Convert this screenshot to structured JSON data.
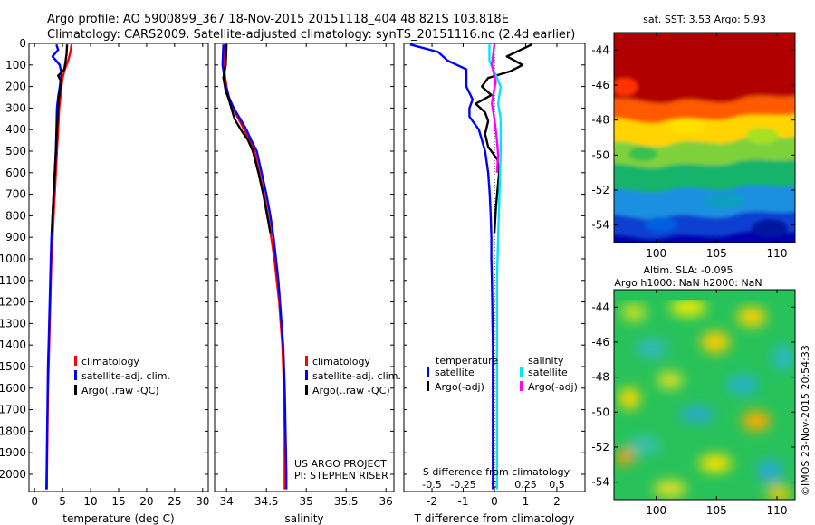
{
  "header": {
    "line1": "Argo profile: AO 5900899_367 18-Nov-2015 20151118_404 48.821S 103.818E",
    "line2": "Climatology: CARS2009. Satellite-adjusted climatology: synTS_20151116.nc (2.4d earlier)"
  },
  "footer_stamp": "©IMOS 23-Nov-2015 20:54:33",
  "colors": {
    "climatology": "#ff0000",
    "satellite": "#0000ff",
    "argo": "#000000",
    "sal_satellite": "#00e5ff",
    "sal_argo": "#ff00ff"
  },
  "chart_data": [
    {
      "id": "temperature",
      "type": "line",
      "xlabel": "temperature (deg C)",
      "ylabel": "",
      "xlim": [
        -1,
        31
      ],
      "ylim": [
        2080,
        0
      ],
      "xticks": [
        "0",
        "5",
        "10",
        "15",
        "20",
        "25",
        "30"
      ],
      "yticks": [
        "0",
        "100",
        "200",
        "300",
        "400",
        "500",
        "600",
        "700",
        "800",
        "900",
        "1000",
        "1100",
        "1200",
        "1300",
        "1400",
        "1500",
        "1600",
        "1700",
        "1800",
        "1900",
        "2000"
      ],
      "legend": [
        "climatology",
        "satellite-adj. clim.",
        "Argo(..raw -QC)"
      ],
      "series": [
        {
          "name": "climatology",
          "points": [
            [
              6.6,
              5
            ],
            [
              6.4,
              40
            ],
            [
              6.0,
              80
            ],
            [
              5.4,
              120
            ],
            [
              5.0,
              160
            ],
            [
              4.8,
              200
            ],
            [
              4.6,
              250
            ],
            [
              4.4,
              300
            ],
            [
              4.2,
              400
            ],
            [
              4.0,
              500
            ],
            [
              3.8,
              600
            ],
            [
              3.6,
              700
            ],
            [
              3.4,
              800
            ],
            [
              3.2,
              900
            ],
            [
              3.0,
              1000
            ],
            [
              2.9,
              1100
            ],
            [
              2.8,
              1200
            ],
            [
              2.7,
              1300
            ],
            [
              2.6,
              1400
            ],
            [
              2.5,
              1500
            ],
            [
              2.4,
              1600
            ],
            [
              2.35,
              1700
            ],
            [
              2.3,
              1800
            ],
            [
              2.25,
              1900
            ],
            [
              2.2,
              2000
            ],
            [
              2.2,
              2070
            ]
          ]
        },
        {
          "name": "satellite-adj. clim.",
          "points": [
            [
              3.9,
              5
            ],
            [
              4.2,
              30
            ],
            [
              3.2,
              60
            ],
            [
              4.5,
              100
            ],
            [
              4.8,
              140
            ],
            [
              4.5,
              200
            ],
            [
              4.2,
              250
            ],
            [
              4.0,
              300
            ],
            [
              3.9,
              400
            ],
            [
              3.8,
              500
            ],
            [
              3.6,
              600
            ],
            [
              3.4,
              700
            ],
            [
              3.2,
              800
            ],
            [
              3.0,
              900
            ],
            [
              2.9,
              1000
            ],
            [
              2.8,
              1100
            ],
            [
              2.7,
              1200
            ],
            [
              2.6,
              1300
            ],
            [
              2.5,
              1400
            ],
            [
              2.4,
              1500
            ],
            [
              2.35,
              1600
            ],
            [
              2.3,
              1700
            ],
            [
              2.25,
              1800
            ],
            [
              2.2,
              1900
            ],
            [
              2.15,
              2000
            ],
            [
              2.1,
              2070
            ]
          ]
        },
        {
          "name": "Argo(..raw -QC)",
          "points": [
            [
              5.8,
              5
            ],
            [
              5.7,
              50
            ],
            [
              5.5,
              90
            ],
            [
              5.3,
              120
            ],
            [
              4.2,
              150
            ],
            [
              4.8,
              180
            ],
            [
              4.5,
              220
            ],
            [
              4.3,
              260
            ],
            [
              4.2,
              300
            ],
            [
              4.0,
              400
            ],
            [
              3.8,
              500
            ],
            [
              3.6,
              600
            ],
            [
              3.4,
              700
            ],
            [
              3.2,
              800
            ],
            [
              3.1,
              880
            ]
          ]
        }
      ]
    },
    {
      "id": "salinity",
      "type": "line",
      "xlabel": "salinity",
      "ylabel": "",
      "xlim": [
        33.85,
        36.1
      ],
      "ylim": [
        2080,
        0
      ],
      "xticks": [
        "34",
        "34.5",
        "35",
        "35.5",
        "36"
      ],
      "legend": [
        "climatology",
        "satellite-adj. clim.",
        "Argo(..raw -QC)"
      ],
      "annotation": [
        "US ARGO PROJECT",
        "PI: STEPHEN RISER"
      ],
      "series": [
        {
          "name": "climatology",
          "points": [
            [
              33.98,
              5
            ],
            [
              33.97,
              100
            ],
            [
              33.98,
              150
            ],
            [
              34.0,
              200
            ],
            [
              34.03,
              250
            ],
            [
              34.08,
              300
            ],
            [
              34.15,
              350
            ],
            [
              34.22,
              400
            ],
            [
              34.29,
              450
            ],
            [
              34.35,
              500
            ],
            [
              34.41,
              600
            ],
            [
              34.47,
              700
            ],
            [
              34.52,
              800
            ],
            [
              34.56,
              900
            ],
            [
              34.6,
              1000
            ],
            [
              34.63,
              1100
            ],
            [
              34.66,
              1200
            ],
            [
              34.68,
              1300
            ],
            [
              34.7,
              1400
            ],
            [
              34.71,
              1500
            ],
            [
              34.72,
              1600
            ],
            [
              34.725,
              1700
            ],
            [
              34.73,
              1800
            ],
            [
              34.73,
              1900
            ],
            [
              34.73,
              2000
            ],
            [
              34.73,
              2070
            ]
          ]
        },
        {
          "name": "satellite-adj. clim.",
          "points": [
            [
              33.96,
              5
            ],
            [
              33.95,
              100
            ],
            [
              33.97,
              150
            ],
            [
              33.99,
              200
            ],
            [
              34.03,
              250
            ],
            [
              34.09,
              300
            ],
            [
              34.17,
              350
            ],
            [
              34.25,
              400
            ],
            [
              34.31,
              450
            ],
            [
              34.38,
              500
            ],
            [
              34.44,
              600
            ],
            [
              34.5,
              700
            ],
            [
              34.55,
              800
            ],
            [
              34.59,
              900
            ],
            [
              34.62,
              1000
            ],
            [
              34.65,
              1100
            ],
            [
              34.67,
              1200
            ],
            [
              34.69,
              1300
            ],
            [
              34.71,
              1400
            ],
            [
              34.72,
              1500
            ],
            [
              34.73,
              1600
            ],
            [
              34.735,
              1700
            ],
            [
              34.74,
              1800
            ],
            [
              34.745,
              1900
            ],
            [
              34.75,
              2000
            ],
            [
              34.75,
              2070
            ]
          ]
        },
        {
          "name": "Argo(..raw -QC)",
          "points": [
            [
              34.0,
              5
            ],
            [
              33.99,
              100
            ],
            [
              33.96,
              160
            ],
            [
              33.99,
              220
            ],
            [
              34.03,
              260
            ],
            [
              34.06,
              300
            ],
            [
              34.1,
              350
            ],
            [
              34.18,
              400
            ],
            [
              34.27,
              450
            ],
            [
              34.33,
              500
            ],
            [
              34.4,
              600
            ],
            [
              34.46,
              700
            ],
            [
              34.51,
              800
            ],
            [
              34.55,
              880
            ]
          ]
        }
      ]
    },
    {
      "id": "differences",
      "type": "line",
      "xlabel": "T difference from climatology",
      "x2label": "S difference from climatology",
      "xlim": [
        -2.9,
        2.9
      ],
      "x2lim": [
        -0.725,
        0.725
      ],
      "ylim": [
        2080,
        0
      ],
      "xticks": [
        "-2",
        "-1",
        "0",
        "1",
        "2"
      ],
      "x2ticks": [
        "-0.5",
        "-0.25",
        "0",
        "0.25",
        "0.5"
      ],
      "legend_left_title": "temperature",
      "legend_right_title": "salinity",
      "legend": [
        "satellite",
        "Argo(-adj)",
        "satellite",
        "Argo(-adj)"
      ],
      "series": [
        {
          "name": "satellite",
          "quantity": "temperature",
          "points": [
            [
              -2.7,
              5
            ],
            [
              -1.8,
              40
            ],
            [
              -1.5,
              80
            ],
            [
              -0.9,
              120
            ],
            [
              -0.9,
              200
            ],
            [
              -0.7,
              260
            ],
            [
              -0.8,
              300
            ],
            [
              -0.8,
              340
            ],
            [
              -0.5,
              400
            ],
            [
              -0.3,
              500
            ],
            [
              -0.2,
              600
            ],
            [
              -0.15,
              700
            ],
            [
              -0.12,
              800
            ],
            [
              -0.1,
              900
            ],
            [
              -0.1,
              1000
            ],
            [
              -0.08,
              1100
            ],
            [
              -0.07,
              1200
            ],
            [
              -0.06,
              1300
            ],
            [
              -0.05,
              1400
            ],
            [
              -0.05,
              1500
            ],
            [
              -0.05,
              1600
            ],
            [
              -0.05,
              1700
            ],
            [
              -0.05,
              1800
            ],
            [
              -0.05,
              1900
            ],
            [
              -0.05,
              2000
            ],
            [
              -0.05,
              2070
            ]
          ]
        },
        {
          "name": "Argo(-adj)",
          "quantity": "temperature",
          "points": [
            [
              1.2,
              5
            ],
            [
              0.4,
              60
            ],
            [
              0.9,
              100
            ],
            [
              0.5,
              130
            ],
            [
              -0.2,
              160
            ],
            [
              -0.4,
              200
            ],
            [
              -0.1,
              240
            ],
            [
              -0.6,
              280
            ],
            [
              -0.3,
              320
            ],
            [
              -0.2,
              360
            ],
            [
              -0.3,
              420
            ],
            [
              -0.2,
              480
            ],
            [
              0.1,
              540
            ],
            [
              0.15,
              600
            ],
            [
              0.1,
              680
            ],
            [
              0.05,
              760
            ],
            [
              0.0,
              880
            ]
          ]
        },
        {
          "name": "satellite",
          "quantity": "salinity",
          "points": [
            [
              -0.04,
              5
            ],
            [
              -0.04,
              80
            ],
            [
              0.02,
              160
            ],
            [
              0.05,
              200
            ],
            [
              0.03,
              280
            ],
            [
              0.05,
              350
            ],
            [
              0.05,
              500
            ],
            [
              0.04,
              700
            ],
            [
              0.03,
              900
            ],
            [
              0.02,
              1100
            ],
            [
              0.02,
              1300
            ],
            [
              0.02,
              1500
            ],
            [
              0.02,
              1700
            ],
            [
              0.02,
              1900
            ],
            [
              0.02,
              2070
            ]
          ]
        },
        {
          "name": "Argo(-adj)",
          "quantity": "salinity",
          "points": [
            [
              0.0,
              5
            ],
            [
              -0.02,
              100
            ],
            [
              0.01,
              180
            ],
            [
              -0.01,
              240
            ],
            [
              -0.02,
              280
            ],
            [
              0.0,
              350
            ],
            [
              0.02,
              450
            ],
            [
              0.03,
              520
            ],
            [
              0.02,
              600
            ]
          ]
        }
      ]
    },
    {
      "id": "sst_map",
      "type": "heatmap",
      "title": "sat. SST: 3.53 Argo: 5.93",
      "xlim": [
        96.5,
        111.5
      ],
      "ylim": [
        -55,
        -43
      ],
      "xticks": [
        "100",
        "105",
        "110"
      ],
      "yticks": [
        "-44",
        "-46",
        "-48",
        "-50",
        "-52",
        "-54"
      ]
    },
    {
      "id": "sla_map",
      "type": "heatmap",
      "title": "Altim. SLA: -0.095",
      "subtitle": "Argo h1000: NaN h2000: NaN",
      "xlim": [
        96.5,
        111.5
      ],
      "ylim": [
        -55,
        -43
      ],
      "xticks": [
        "100",
        "105",
        "110"
      ],
      "yticks": [
        "-44",
        "-46",
        "-48",
        "-50",
        "-52",
        "-54"
      ]
    }
  ]
}
